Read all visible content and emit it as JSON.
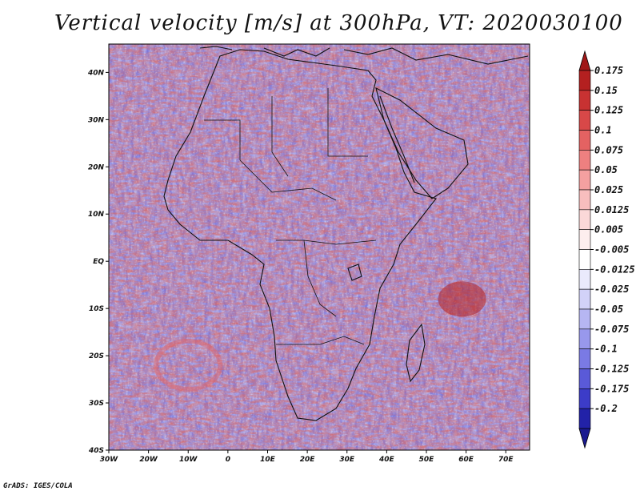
{
  "title": "Vertical velocity [m/s] at 300hPa, VT: 2020030100",
  "credit": "GrADS: IGES/COLA",
  "map": {
    "region": "Africa",
    "lon_range": [
      -30,
      76
    ],
    "lat_range": [
      -40,
      46
    ],
    "lat_ticks": [
      {
        "value": 40,
        "label": "40N"
      },
      {
        "value": 30,
        "label": "30N"
      },
      {
        "value": 20,
        "label": "20N"
      },
      {
        "value": 10,
        "label": "10N"
      },
      {
        "value": 0,
        "label": "EQ"
      },
      {
        "value": -10,
        "label": "10S"
      },
      {
        "value": -20,
        "label": "20S"
      },
      {
        "value": -30,
        "label": "30S"
      },
      {
        "value": -40,
        "label": "40S"
      }
    ],
    "lon_ticks": [
      {
        "value": -30,
        "label": "30W"
      },
      {
        "value": -20,
        "label": "20W"
      },
      {
        "value": -10,
        "label": "10W"
      },
      {
        "value": 0,
        "label": "0"
      },
      {
        "value": 10,
        "label": "10E"
      },
      {
        "value": 20,
        "label": "20E"
      },
      {
        "value": 30,
        "label": "30E"
      },
      {
        "value": 40,
        "label": "40E"
      },
      {
        "value": 50,
        "label": "50E"
      },
      {
        "value": 60,
        "label": "60E"
      },
      {
        "value": 70,
        "label": "70E"
      }
    ]
  },
  "colorbar": {
    "levels": [
      {
        "label": "0.175",
        "color": "#b42020"
      },
      {
        "label": "0.15",
        "color": "#c83232"
      },
      {
        "label": "0.125",
        "color": "#d84848"
      },
      {
        "label": "0.1",
        "color": "#e46262"
      },
      {
        "label": "0.075",
        "color": "#ee8080"
      },
      {
        "label": "0.05",
        "color": "#f4a0a0"
      },
      {
        "label": "0.025",
        "color": "#f8bebe"
      },
      {
        "label": "0.0125",
        "color": "#fbd8d8"
      },
      {
        "label": "0.005",
        "color": "#fdeeee"
      },
      {
        "label": "-0.005",
        "color": "#ffffff"
      },
      {
        "label": "-0.0125",
        "color": "#eaeafc"
      },
      {
        "label": "-0.025",
        "color": "#d2d2f8"
      },
      {
        "label": "-0.05",
        "color": "#b6b6f2"
      },
      {
        "label": "-0.075",
        "color": "#9898ec"
      },
      {
        "label": "-0.1",
        "color": "#7a7ae4"
      },
      {
        "label": "-0.125",
        "color": "#5a5ad8"
      },
      {
        "label": "-0.175",
        "color": "#3c3cc8"
      },
      {
        "label": "-0.2",
        "color": "#2222a8"
      }
    ],
    "top_arrow_color": "#a01818",
    "bottom_arrow_color": "#1a1a90"
  },
  "features": {
    "tropical_cyclone": {
      "lon": 59,
      "lat": -8
    },
    "gyre_center": {
      "lon": -10,
      "lat": -22
    }
  }
}
